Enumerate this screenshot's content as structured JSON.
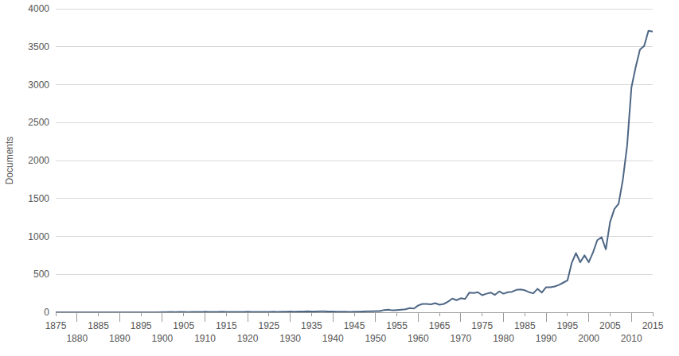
{
  "chart_data": {
    "type": "line",
    "y_label": "Documents",
    "color": "#4e6785",
    "grid": true,
    "x": [
      1875,
      1876,
      1877,
      1878,
      1879,
      1880,
      1881,
      1882,
      1883,
      1884,
      1885,
      1886,
      1887,
      1888,
      1889,
      1890,
      1891,
      1892,
      1893,
      1894,
      1895,
      1896,
      1897,
      1898,
      1899,
      1900,
      1901,
      1902,
      1903,
      1904,
      1905,
      1906,
      1907,
      1908,
      1909,
      1910,
      1911,
      1912,
      1913,
      1914,
      1915,
      1916,
      1917,
      1918,
      1919,
      1920,
      1921,
      1922,
      1923,
      1924,
      1925,
      1926,
      1927,
      1928,
      1929,
      1930,
      1931,
      1932,
      1933,
      1934,
      1935,
      1936,
      1937,
      1938,
      1939,
      1940,
      1941,
      1942,
      1943,
      1944,
      1945,
      1946,
      1947,
      1948,
      1949,
      1950,
      1951,
      1952,
      1953,
      1954,
      1955,
      1956,
      1957,
      1958,
      1959,
      1960,
      1961,
      1962,
      1963,
      1964,
      1965,
      1966,
      1967,
      1968,
      1969,
      1970,
      1971,
      1972,
      1973,
      1974,
      1975,
      1976,
      1977,
      1978,
      1979,
      1980,
      1981,
      1982,
      1983,
      1984,
      1985,
      1986,
      1987,
      1988,
      1989,
      1990,
      1991,
      1992,
      1993,
      1994,
      1995,
      1996,
      1997,
      1998,
      1999,
      2000,
      2001,
      2002,
      2003,
      2004,
      2005,
      2006,
      2007,
      2008,
      2009,
      2010,
      2011,
      2012,
      2013,
      2014,
      2015
    ],
    "values": [
      0,
      0,
      0,
      0,
      0,
      0,
      0,
      0,
      0,
      0,
      0,
      0,
      0,
      0,
      0,
      0,
      0,
      0,
      0,
      0,
      0,
      0,
      0,
      0,
      0,
      3,
      2,
      4,
      3,
      5,
      4,
      3,
      6,
      4,
      5,
      7,
      5,
      6,
      4,
      8,
      6,
      5,
      4,
      6,
      5,
      7,
      6,
      5,
      4,
      6,
      5,
      7,
      6,
      8,
      7,
      10,
      9,
      11,
      10,
      12,
      10,
      11,
      13,
      12,
      10,
      11,
      9,
      8,
      7,
      6,
      8,
      9,
      10,
      12,
      14,
      15,
      15,
      30,
      35,
      25,
      30,
      35,
      40,
      55,
      50,
      90,
      110,
      110,
      105,
      120,
      100,
      110,
      140,
      180,
      160,
      185,
      175,
      260,
      255,
      265,
      225,
      245,
      260,
      230,
      275,
      245,
      265,
      270,
      295,
      300,
      290,
      265,
      250,
      310,
      260,
      330,
      330,
      340,
      360,
      390,
      420,
      650,
      780,
      660,
      750,
      660,
      790,
      950,
      990,
      830,
      1190,
      1360,
      1430,
      1750,
      2200,
      2960,
      3230,
      3460,
      3510,
      3710,
      3700
    ],
    "xlim": [
      1875,
      2015
    ],
    "xticks": [
      1875,
      1880,
      1885,
      1890,
      1895,
      1900,
      1905,
      1910,
      1915,
      1920,
      1925,
      1930,
      1935,
      1940,
      1945,
      1950,
      1955,
      1960,
      1965,
      1970,
      1975,
      1980,
      1985,
      1990,
      1995,
      2000,
      2005,
      2010,
      2015
    ],
    "ylim": [
      0,
      4000
    ],
    "yticks": [
      0,
      500,
      1000,
      1500,
      2000,
      2500,
      3000,
      3500,
      4000
    ]
  }
}
